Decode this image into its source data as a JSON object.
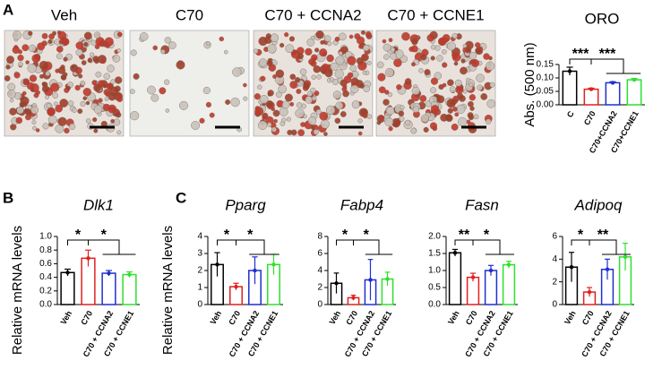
{
  "panel_labels": [
    "A",
    "B",
    "C"
  ],
  "images": [
    "Veh",
    "C70",
    "C70 + CCNA2",
    "C70 + CCNE1"
  ],
  "chart_data": [
    {
      "type": "bar",
      "title": "ORO",
      "italic_title": false,
      "ylabel": "Abs. (500 nm)",
      "categories": [
        "C",
        "C70",
        "C70+CCNA2",
        "C70+CCNE1"
      ],
      "values": [
        0.125,
        0.058,
        0.082,
        0.093
      ],
      "errors": [
        0.015,
        0.004,
        0.004,
        0.005
      ],
      "colors": [
        "#000000",
        "#e02020",
        "#1f2fd0",
        "#2ee02e"
      ],
      "ylim": [
        0,
        0.15
      ],
      "yticks": [
        {
          "value": 0,
          "label": "0.00"
        },
        0.05,
        {
          "value": 0.1,
          "label": "0.10"
        },
        0.15
      ],
      "annotations": [
        "***",
        "***"
      ]
    },
    {
      "type": "bar",
      "title": "Dlk1",
      "italic_title": true,
      "ylabel": "Relative mRNA levels",
      "categories": [
        "Veh",
        "C70",
        "C70 + CCNA2",
        "C70 + CCNE1"
      ],
      "values": [
        0.47,
        0.68,
        0.46,
        0.44
      ],
      "errors": [
        0.05,
        0.12,
        0.04,
        0.04
      ],
      "colors": [
        "#000000",
        "#e02020",
        "#1f2fd0",
        "#2ee02e"
      ],
      "ylim": [
        0,
        1
      ],
      "yticks": [
        {
          "value": 0,
          "label": "0.0"
        },
        0.2,
        0.4,
        0.6,
        0.8,
        {
          "value": 1,
          "label": "1.0"
        }
      ],
      "annotations": [
        "*",
        "*"
      ]
    },
    {
      "type": "bar",
      "title": "Pparg",
      "italic_title": true,
      "ylabel": "Relative mRNA levels",
      "categories": [
        "Veh",
        "C70",
        "C70 + CCNA2",
        "C70 + CCNE1"
      ],
      "values": [
        2.35,
        1.05,
        2.0,
        2.35
      ],
      "errors": [
        0.7,
        0.2,
        0.8,
        0.6
      ],
      "colors": [
        "#000000",
        "#e02020",
        "#1f2fd0",
        "#2ee02e"
      ],
      "ylim": [
        0,
        4
      ],
      "yticks": [
        0,
        1,
        2,
        3,
        4
      ],
      "annotations": [
        "*",
        "*"
      ]
    },
    {
      "type": "bar",
      "title": "Fabp4",
      "italic_title": true,
      "categories": [
        "Veh",
        "C70",
        "C70 + CCNA2",
        "C70 + CCNE1"
      ],
      "values": [
        2.5,
        0.8,
        2.9,
        3.0
      ],
      "errors": [
        1.2,
        0.3,
        2.4,
        0.8
      ],
      "colors": [
        "#000000",
        "#e02020",
        "#1f2fd0",
        "#2ee02e"
      ],
      "ylim": [
        0,
        8
      ],
      "yticks": [
        0,
        2,
        4,
        6,
        8
      ],
      "annotations": [
        "*",
        "*"
      ]
    },
    {
      "type": "bar",
      "title": "Fasn",
      "italic_title": true,
      "categories": [
        "Veh",
        "C70",
        "C70 + CCNA2",
        "C70 + CCNE1"
      ],
      "values": [
        1.52,
        0.8,
        1.0,
        1.17
      ],
      "errors": [
        0.1,
        0.12,
        0.15,
        0.1
      ],
      "colors": [
        "#000000",
        "#e02020",
        "#1f2fd0",
        "#2ee02e"
      ],
      "ylim": [
        0,
        2
      ],
      "yticks": [
        {
          "value": 0,
          "label": "0.0"
        },
        0.5,
        {
          "value": 1,
          "label": "1.0"
        },
        1.5,
        {
          "value": 2,
          "label": "2.0"
        }
      ],
      "annotations": [
        "**",
        "*"
      ]
    },
    {
      "type": "bar",
      "title": "Adipoq",
      "italic_title": true,
      "categories": [
        "Veh",
        "C70",
        "C70 + CCNA2",
        "C70 + CCNE1"
      ],
      "values": [
        3.3,
        1.1,
        3.1,
        4.2
      ],
      "errors": [
        1.3,
        0.4,
        0.9,
        1.2
      ],
      "colors": [
        "#000000",
        "#e02020",
        "#1f2fd0",
        "#2ee02e"
      ],
      "ylim": [
        0,
        6
      ],
      "yticks": [
        0,
        2,
        4,
        6
      ],
      "annotations": [
        "*",
        "**"
      ]
    }
  ]
}
